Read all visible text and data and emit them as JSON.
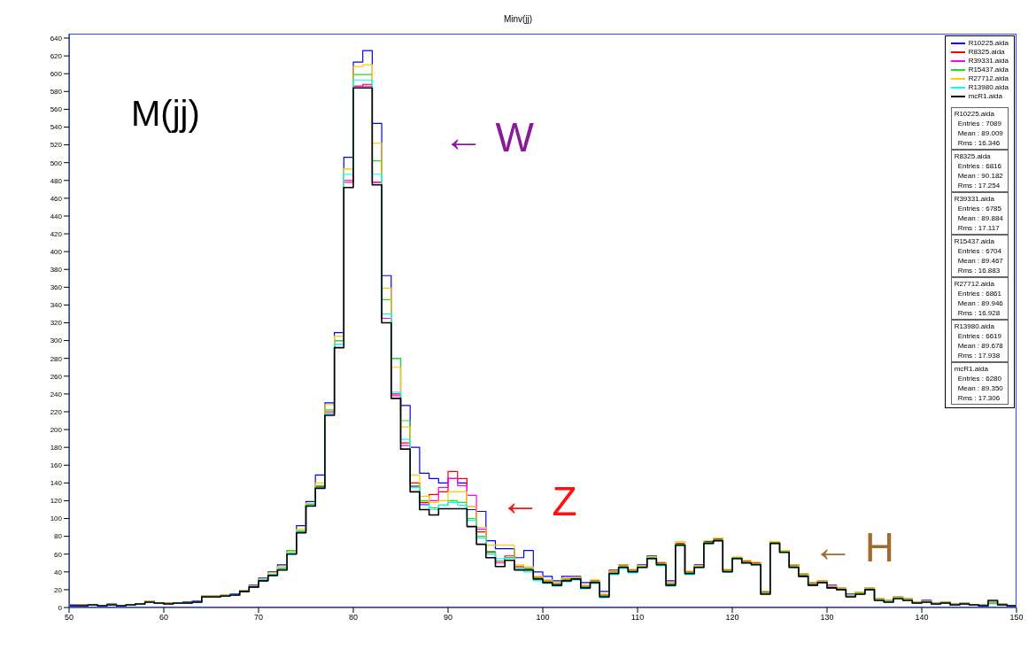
{
  "chart_data": {
    "type": "histogram",
    "title": "Minv(jj)",
    "bins": [
      50,
      51,
      52,
      53,
      54,
      55,
      56,
      57,
      58,
      59,
      60,
      61,
      62,
      63,
      64,
      65,
      66,
      67,
      68,
      69,
      70,
      71,
      72,
      73,
      74,
      75,
      76,
      77,
      78,
      79,
      80,
      81,
      82,
      83,
      84,
      85,
      86,
      87,
      88,
      89,
      90,
      91,
      92,
      93,
      94,
      95,
      96,
      97,
      98,
      99,
      100,
      101,
      102,
      103,
      104,
      105,
      106,
      107,
      108,
      109,
      110,
      111,
      112,
      113,
      114,
      115,
      116,
      117,
      118,
      119,
      120,
      121,
      122,
      123,
      124,
      125,
      126,
      127,
      128,
      129,
      130,
      131,
      132,
      133,
      134,
      135,
      136,
      137,
      138,
      139,
      140,
      141,
      142,
      143,
      144,
      145,
      146,
      147,
      148,
      149,
      150
    ],
    "xlim": [
      50,
      150
    ],
    "xticks": [
      50,
      60,
      70,
      80,
      90,
      100,
      110,
      120,
      130,
      140,
      150
    ],
    "ylim": [
      0,
      645
    ],
    "yticks": [
      0,
      20,
      40,
      60,
      80,
      100,
      120,
      140,
      160,
      180,
      200,
      220,
      240,
      260,
      280,
      300,
      320,
      340,
      360,
      380,
      400,
      420,
      440,
      460,
      480,
      500,
      520,
      540,
      560,
      580,
      600,
      620,
      640
    ],
    "legend": "top right",
    "grid": false,
    "series": [
      {
        "name": "R10225.aida",
        "color": "#0000ff",
        "values": [
          3,
          3,
          3,
          2,
          4,
          2,
          3,
          4,
          7,
          5,
          5,
          5,
          6,
          7,
          13,
          13,
          14,
          15,
          19,
          25,
          33,
          40,
          48,
          64,
          92,
          119,
          149,
          230,
          309,
          506,
          613,
          626,
          544,
          373,
          280,
          227,
          180,
          151,
          145,
          140,
          145,
          140,
          110,
          108,
          75,
          66,
          66,
          56,
          64,
          40,
          35,
          30,
          35,
          35,
          28,
          30,
          18,
          42,
          48,
          42,
          48,
          58,
          50,
          30,
          72,
          40,
          48,
          74,
          78,
          42,
          56,
          52,
          50,
          18,
          74,
          64,
          48,
          38,
          28,
          30,
          25,
          22,
          15,
          17,
          22,
          10,
          8,
          12,
          10,
          6,
          8,
          5,
          6,
          4,
          5,
          3,
          3,
          6,
          4,
          2
        ]
      },
      {
        "name": "R8325.aida",
        "color": "#ff0000",
        "values": [
          2,
          3,
          3,
          2,
          3,
          2,
          3,
          4,
          7,
          5,
          5,
          5,
          5,
          6,
          12,
          13,
          13,
          14,
          18,
          23,
          31,
          37,
          44,
          62,
          86,
          116,
          136,
          220,
          300,
          480,
          586,
          588,
          478,
          325,
          240,
          185,
          140,
          118,
          127,
          130,
          153,
          145,
          113,
          85,
          62,
          52,
          58,
          46,
          44,
          34,
          30,
          27,
          32,
          34,
          24,
          30,
          14,
          40,
          47,
          42,
          46,
          56,
          50,
          27,
          72,
          40,
          46,
          73,
          77,
          42,
          56,
          52,
          50,
          17,
          73,
          63,
          47,
          37,
          27,
          30,
          23,
          21,
          13,
          16,
          21,
          9,
          7,
          11,
          9,
          6,
          7,
          4,
          6,
          3,
          4,
          3,
          2,
          5,
          3,
          2
        ]
      },
      {
        "name": "R39331.aida",
        "color": "#ff00ff",
        "values": [
          2,
          2,
          3,
          2,
          3,
          2,
          3,
          4,
          7,
          5,
          4,
          5,
          5,
          6,
          12,
          12,
          13,
          14,
          18,
          23,
          30,
          37,
          43,
          61,
          85,
          115,
          135,
          218,
          296,
          478,
          586,
          586,
          478,
          325,
          238,
          182,
          136,
          116,
          120,
          135,
          145,
          137,
          126,
          88,
          60,
          50,
          56,
          44,
          43,
          33,
          29,
          26,
          31,
          33,
          23,
          29,
          13,
          39,
          46,
          41,
          46,
          56,
          49,
          26,
          71,
          39,
          46,
          73,
          76,
          41,
          56,
          51,
          49,
          16,
          73,
          63,
          46,
          36,
          26,
          29,
          23,
          21,
          13,
          16,
          21,
          9,
          7,
          11,
          9,
          5,
          7,
          4,
          5,
          3,
          4,
          3,
          2,
          5,
          3,
          2
        ]
      },
      {
        "name": "R15437.aida",
        "color": "#22dd22",
        "values": [
          2,
          2,
          3,
          2,
          3,
          2,
          3,
          4,
          6,
          5,
          4,
          5,
          5,
          6,
          12,
          12,
          13,
          14,
          18,
          24,
          31,
          37,
          44,
          64,
          86,
          116,
          137,
          222,
          300,
          493,
          599,
          599,
          502,
          346,
          280,
          210,
          137,
          120,
          112,
          115,
          120,
          118,
          100,
          80,
          63,
          52,
          56,
          44,
          44,
          33,
          29,
          26,
          31,
          33,
          23,
          29,
          13,
          39,
          46,
          41,
          46,
          56,
          49,
          26,
          71,
          39,
          46,
          73,
          76,
          41,
          56,
          51,
          49,
          16,
          73,
          63,
          46,
          36,
          26,
          29,
          22,
          21,
          13,
          16,
          21,
          9,
          7,
          11,
          9,
          5,
          6,
          4,
          5,
          3,
          4,
          3,
          2,
          5,
          3,
          2
        ]
      },
      {
        "name": "R27712.aida",
        "color": "#ffcc00",
        "values": [
          2,
          3,
          3,
          2,
          3,
          2,
          3,
          4,
          7,
          5,
          5,
          5,
          5,
          6,
          13,
          13,
          14,
          14,
          19,
          24,
          32,
          39,
          46,
          62,
          88,
          117,
          140,
          228,
          305,
          493,
          608,
          610,
          522,
          359,
          270,
          203,
          149,
          125,
          118,
          120,
          130,
          130,
          113,
          90,
          70,
          70,
          70,
          48,
          46,
          35,
          31,
          28,
          33,
          34,
          25,
          31,
          15,
          41,
          48,
          43,
          47,
          57,
          51,
          28,
          74,
          41,
          47,
          75,
          78,
          43,
          57,
          53,
          51,
          18,
          74,
          64,
          48,
          38,
          28,
          30,
          24,
          22,
          14,
          17,
          22,
          10,
          8,
          12,
          10,
          6,
          7,
          5,
          6,
          4,
          5,
          3,
          3,
          6,
          4,
          2
        ]
      },
      {
        "name": "R13980.aida",
        "color": "#00ffff",
        "values": [
          2,
          2,
          3,
          2,
          3,
          2,
          3,
          4,
          6,
          5,
          4,
          5,
          5,
          6,
          12,
          12,
          13,
          14,
          18,
          23,
          31,
          37,
          43,
          61,
          85,
          115,
          135,
          218,
          296,
          487,
          593,
          593,
          487,
          330,
          242,
          189,
          135,
          115,
          110,
          115,
          118,
          115,
          98,
          78,
          60,
          55,
          55,
          44,
          40,
          30,
          27,
          24,
          29,
          31,
          21,
          27,
          11,
          37,
          44,
          39,
          45,
          54,
          47,
          24,
          70,
          37,
          45,
          72,
          75,
          40,
          54,
          50,
          48,
          15,
          72,
          62,
          45,
          35,
          25,
          28,
          22,
          20,
          12,
          15,
          20,
          8,
          6,
          10,
          8,
          5,
          6,
          4,
          5,
          3,
          4,
          3,
          2,
          4,
          3,
          2
        ]
      },
      {
        "name": "mcR1.aida",
        "color": "#000000",
        "values": [
          2,
          2,
          3,
          2,
          3,
          2,
          3,
          4,
          6,
          5,
          4,
          5,
          5,
          6,
          12,
          12,
          13,
          14,
          18,
          23,
          30,
          36,
          42,
          60,
          84,
          114,
          134,
          216,
          292,
          472,
          584,
          584,
          475,
          320,
          235,
          178,
          130,
          110,
          104,
          111,
          111,
          111,
          91,
          71,
          56,
          46,
          53,
          42,
          42,
          32,
          28,
          25,
          30,
          32,
          22,
          28,
          12,
          38,
          45,
          40,
          45,
          55,
          48,
          25,
          70,
          38,
          45,
          72,
          75,
          40,
          55,
          50,
          48,
          15,
          72,
          62,
          45,
          35,
          25,
          28,
          22,
          20,
          12,
          15,
          20,
          8,
          6,
          10,
          8,
          5,
          6,
          4,
          5,
          3,
          4,
          3,
          2,
          8,
          3,
          2
        ]
      }
    ],
    "annotations": [
      "M(jj)",
      "← W",
      "← Z",
      "← H",
      "R10225.aida",
      "Entries : 7089",
      "Mean : 89.009",
      "Rms : 16.346",
      "R8325.aida",
      "Entries : 6816",
      "Mean : 90.182",
      "Rms : 17.254",
      "R39331.aida",
      "Entries : 6785",
      "Mean : 89.884",
      "Rms : 17.117",
      "R15437.aida",
      "Entries : 6704",
      "Mean : 89.467",
      "Rms : 16.883",
      "R27712.aida",
      "Entries : 6861",
      "Mean : 89.946",
      "Rms : 16.928",
      "R13980.aida",
      "Entries : 6619",
      "Mean : 89.678",
      "Rms : 17.938",
      "mcR1.aida",
      "Entries : 6280",
      "Mean : 89.350",
      "Rms : 17.306"
    ]
  }
}
